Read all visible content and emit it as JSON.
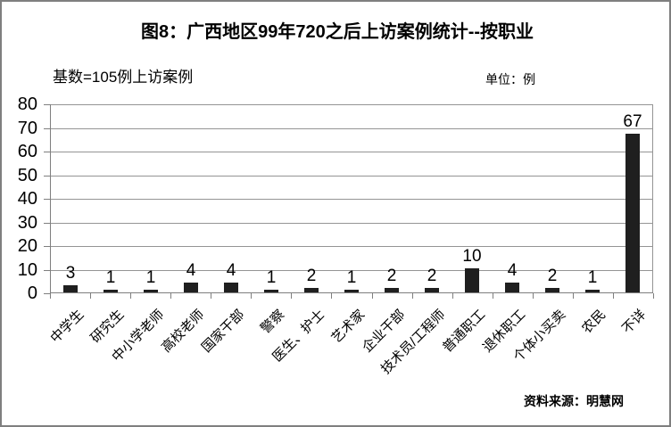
{
  "title": "图8：广西地区99年720之后上访案例统计--按职业",
  "base_note": "基数=105例上访案例",
  "unit_note": "单位：例",
  "source_note": "资料来源：明慧网",
  "colors": {
    "bar": "#1f1f1f",
    "grid": "#949494",
    "axis": "#7f7f7f",
    "frame_border": "#7f7f7f",
    "background": "#ffffff",
    "text": "#000000"
  },
  "chart_data": {
    "type": "bar",
    "title": "图8：广西地区99年720之后上访案例统计--按职业",
    "subtitle_left": "基数=105例上访案例",
    "unit_label": "单位：例",
    "source": "资料来源：明慧网",
    "categories": [
      "中学生",
      "研究生",
      "中小学老师",
      "高校老师",
      "国家干部",
      "警察",
      "医生、护士",
      "艺术家",
      "企业干部",
      "技术员/工程师",
      "普通职工",
      "退休职工",
      "个体小买卖",
      "农民",
      "不详"
    ],
    "values": [
      3,
      1,
      1,
      4,
      4,
      1,
      2,
      1,
      2,
      2,
      10,
      4,
      2,
      1,
      67
    ],
    "total_n": 105,
    "xlabel": "",
    "ylabel": "",
    "ylim": [
      0,
      80
    ],
    "ytick_step": 10,
    "grid": true,
    "legend": false,
    "value_labels": true
  }
}
